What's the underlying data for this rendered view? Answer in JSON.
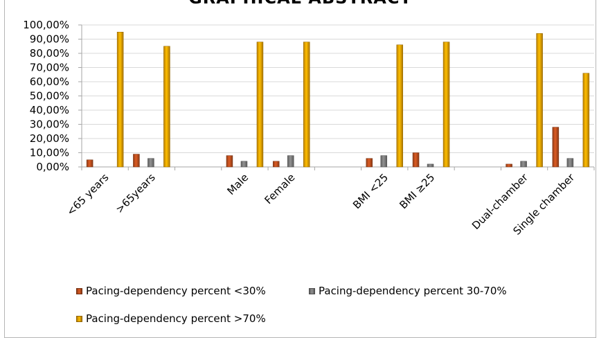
{
  "chart_data": {
    "type": "bar",
    "title": "GRAPHICAL ABSTRACT",
    "xlabel": "",
    "ylabel": "",
    "categories": [
      "<65 years",
      ">65years",
      "Male",
      "Female",
      "BMI <25",
      "BMI ≥25",
      "Dual-chamber",
      "Single chamber"
    ],
    "groups": [
      [
        0,
        1
      ],
      [
        2,
        3
      ],
      [
        4,
        5
      ],
      [
        6,
        7
      ]
    ],
    "series": [
      {
        "name": "Pacing-dependency percent <30%",
        "color": "#c0501e",
        "values": [
          5,
          9,
          8,
          4,
          6,
          10,
          2,
          28
        ]
      },
      {
        "name": "Pacing-dependency percent 30-70%",
        "color": "#7f7f7f",
        "values": [
          0,
          6,
          4,
          8,
          8,
          2,
          4,
          6
        ]
      },
      {
        "name": "Pacing-dependency percent >70%",
        "color": "#f2a600",
        "values": [
          95,
          85,
          88,
          88,
          86,
          88,
          94,
          66
        ]
      }
    ],
    "ylim": [
      0,
      100
    ],
    "ytick_step": 10,
    "ytick_labels": [
      "0,00%",
      "10,00%",
      "20,00%",
      "30,00%",
      "40,00%",
      "50,00%",
      "60,00%",
      "70,00%",
      "80,00%",
      "90,00%",
      "100,00%"
    ],
    "grid": true,
    "legend_position": "bottom"
  }
}
